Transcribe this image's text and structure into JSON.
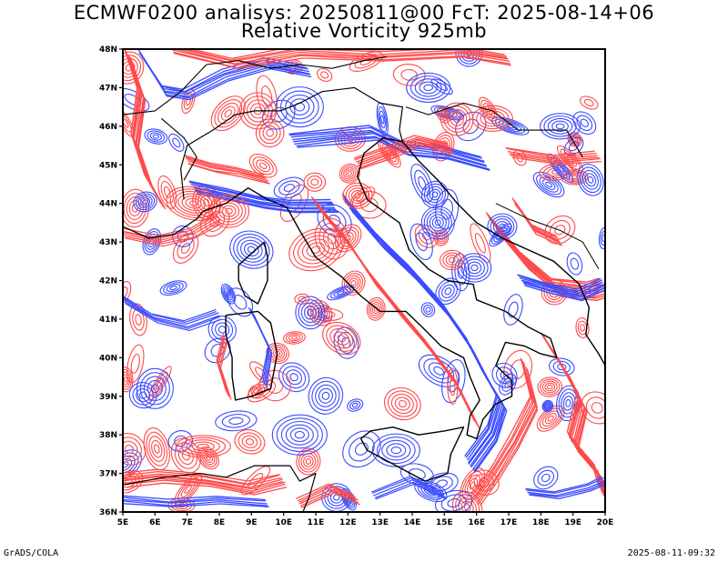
{
  "header": {
    "title_line1": "ECMWF0200 analisys: 20250811@00 FcT: 2025-08-14+06",
    "title_line2": "Relative Vorticity 925mb"
  },
  "map": {
    "lon_labels": [
      "5E",
      "6E",
      "7E",
      "8E",
      "9E",
      "10E",
      "11E",
      "12E",
      "13E",
      "14E",
      "15E",
      "16E",
      "17E",
      "18E",
      "19E",
      "20E"
    ],
    "lat_labels": [
      "36N",
      "37N",
      "38N",
      "39N",
      "40N",
      "41N",
      "42N",
      "43N",
      "44N",
      "45N",
      "46N",
      "47N",
      "48N"
    ],
    "lon_range": [
      5,
      20
    ],
    "lat_range": [
      36,
      48
    ],
    "colors": {
      "positive": "#ff4a4a",
      "negative": "#3a4cff",
      "coast": "#000000"
    }
  },
  "footer": {
    "left": "GrADS/COLA",
    "right": "2025-08-11-09:32"
  }
}
